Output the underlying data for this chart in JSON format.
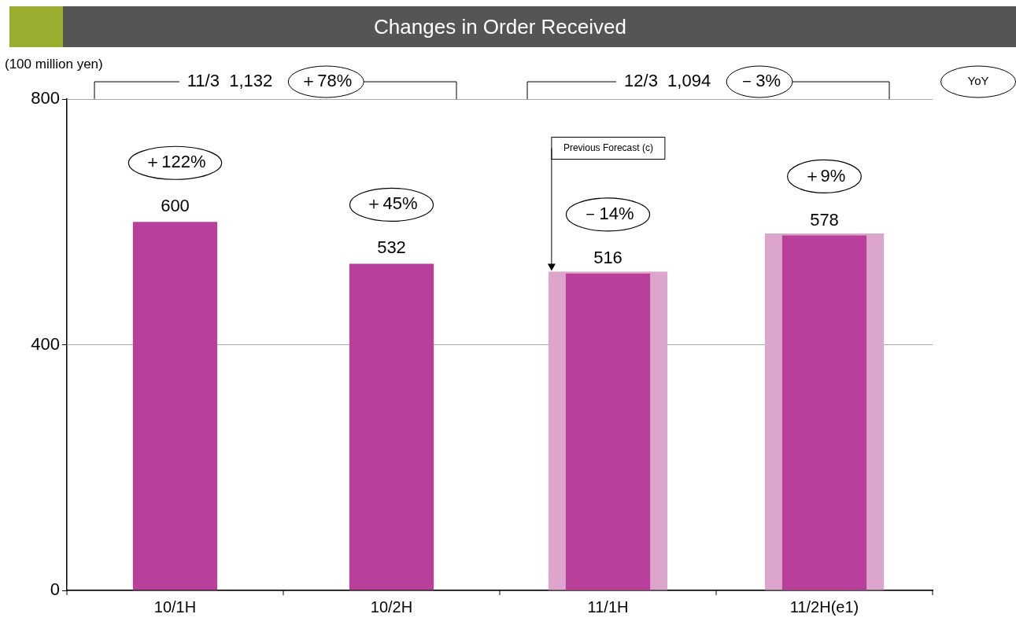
{
  "chart_data": {
    "type": "bar",
    "title": "Changes in Order Received",
    "ylabel": "(100 million yen)",
    "categories": [
      "10/1H",
      "10/2H",
      "11/1H",
      "11/2H(e1)"
    ],
    "series": [
      {
        "color": "#b8409a",
        "values": [
          600,
          532,
          516,
          578
        ],
        "value_labels": [
          "600",
          "532",
          "516",
          "578"
        ]
      },
      {
        "name": "Previous Forecast (c)",
        "color": "#dca6cc",
        "values": [
          null,
          null,
          519,
          581
        ]
      }
    ],
    "ylim": [
      0,
      800
    ],
    "yticks": [
      0,
      400,
      800
    ],
    "grid": "y",
    "annotations": [
      "＋122%",
      "＋45%",
      "－14%",
      "＋9%",
      "11/3  1,132",
      "＋78%",
      "12/3  1,094",
      "－3%",
      "YoY"
    ]
  }
}
